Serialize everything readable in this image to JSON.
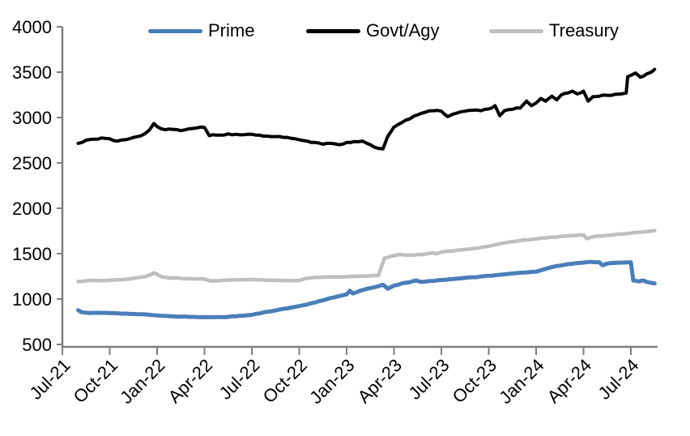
{
  "chart_data": {
    "type": "line",
    "title": "",
    "legend_position": "top",
    "grid": false,
    "x_axis": {
      "unit": "month",
      "origin_label": "Jul-21",
      "tick_labels": [
        "Jul-21",
        "Oct-21",
        "Jan-22",
        "Apr-22",
        "Jul-22",
        "Oct-22",
        "Jan-23",
        "Apr-23",
        "Jul-23",
        "Oct-23",
        "Jan-24",
        "Apr-24",
        "Jul-24"
      ],
      "tick_months": [
        0,
        3,
        6,
        9,
        12,
        15,
        18,
        21,
        24,
        27,
        30,
        33,
        36
      ]
    },
    "y_axis": {
      "ticks": [
        500,
        1000,
        1500,
        2000,
        2500,
        3000,
        3500,
        4000
      ],
      "range": [
        500,
        4000
      ]
    },
    "axis_color": "#7f7f7f",
    "series": [
      {
        "name": "Prime",
        "color": "#4a7eb9",
        "stroke_width": 5,
        "jitter": 3,
        "points": [
          [
            1.0,
            878
          ],
          [
            1.2,
            855
          ],
          [
            1.5,
            850
          ],
          [
            2.0,
            848
          ],
          [
            2.5,
            847
          ],
          [
            3.0,
            845
          ],
          [
            3.5,
            843
          ],
          [
            4.0,
            840
          ],
          [
            4.5,
            836
          ],
          [
            5.0,
            832
          ],
          [
            5.5,
            826
          ],
          [
            6.0,
            820
          ],
          [
            6.5,
            814
          ],
          [
            7.0,
            809
          ],
          [
            7.5,
            806
          ],
          [
            8.0,
            804
          ],
          [
            8.5,
            802
          ],
          [
            9.0,
            801
          ],
          [
            9.5,
            800
          ],
          [
            10.0,
            801
          ],
          [
            10.5,
            804
          ],
          [
            11.0,
            810
          ],
          [
            11.5,
            817
          ],
          [
            12.0,
            826
          ],
          [
            12.5,
            842
          ],
          [
            13.0,
            860
          ],
          [
            13.5,
            875
          ],
          [
            14.0,
            892
          ],
          [
            14.5,
            906
          ],
          [
            15.0,
            922
          ],
          [
            15.5,
            940
          ],
          [
            16.0,
            962
          ],
          [
            16.5,
            986
          ],
          [
            17.0,
            1012
          ],
          [
            17.5,
            1032
          ],
          [
            18.0,
            1052
          ],
          [
            18.2,
            1092
          ],
          [
            18.4,
            1062
          ],
          [
            19.0,
            1098
          ],
          [
            19.5,
            1120
          ],
          [
            20.0,
            1140
          ],
          [
            20.3,
            1158
          ],
          [
            20.6,
            1114
          ],
          [
            21.0,
            1148
          ],
          [
            21.5,
            1172
          ],
          [
            22.0,
            1185
          ],
          [
            22.4,
            1205
          ],
          [
            22.7,
            1188
          ],
          [
            23.0,
            1192
          ],
          [
            23.5,
            1200
          ],
          [
            24.0,
            1210
          ],
          [
            24.5,
            1218
          ],
          [
            25.0,
            1226
          ],
          [
            25.5,
            1233
          ],
          [
            26.0,
            1240
          ],
          [
            26.5,
            1248
          ],
          [
            27.0,
            1256
          ],
          [
            27.5,
            1264
          ],
          [
            28.0,
            1272
          ],
          [
            28.5,
            1281
          ],
          [
            29.0,
            1290
          ],
          [
            29.5,
            1295
          ],
          [
            30.0,
            1302
          ],
          [
            30.5,
            1328
          ],
          [
            31.0,
            1352
          ],
          [
            31.5,
            1368
          ],
          [
            32.0,
            1385
          ],
          [
            32.5,
            1395
          ],
          [
            33.0,
            1402
          ],
          [
            33.5,
            1410
          ],
          [
            34.0,
            1405
          ],
          [
            34.2,
            1372
          ],
          [
            34.5,
            1390
          ],
          [
            35.0,
            1398
          ],
          [
            35.5,
            1402
          ],
          [
            36.0,
            1405
          ],
          [
            36.15,
            1205
          ],
          [
            36.5,
            1195
          ],
          [
            36.8,
            1205
          ],
          [
            37.0,
            1188
          ],
          [
            37.3,
            1178
          ],
          [
            37.5,
            1172
          ]
        ]
      },
      {
        "name": "Govt/Agy",
        "color": "#000000",
        "stroke_width": 4,
        "jitter": 8,
        "points": [
          [
            1.0,
            2715
          ],
          [
            1.5,
            2750
          ],
          [
            2.0,
            2762
          ],
          [
            2.5,
            2775
          ],
          [
            3.0,
            2765
          ],
          [
            3.5,
            2740
          ],
          [
            4.0,
            2755
          ],
          [
            4.5,
            2780
          ],
          [
            5.0,
            2800
          ],
          [
            5.5,
            2860
          ],
          [
            5.8,
            2935
          ],
          [
            6.0,
            2900
          ],
          [
            6.5,
            2865
          ],
          [
            7.0,
            2870
          ],
          [
            7.5,
            2855
          ],
          [
            8.0,
            2875
          ],
          [
            8.5,
            2885
          ],
          [
            9.0,
            2890
          ],
          [
            9.3,
            2800
          ],
          [
            9.5,
            2810
          ],
          [
            10.0,
            2805
          ],
          [
            10.5,
            2820
          ],
          [
            11.0,
            2815
          ],
          [
            11.5,
            2810
          ],
          [
            12.0,
            2815
          ],
          [
            12.5,
            2805
          ],
          [
            13.0,
            2795
          ],
          [
            13.5,
            2790
          ],
          [
            14.0,
            2780
          ],
          [
            14.5,
            2770
          ],
          [
            15.0,
            2755
          ],
          [
            15.5,
            2740
          ],
          [
            16.0,
            2725
          ],
          [
            16.5,
            2705
          ],
          [
            17.0,
            2715
          ],
          [
            17.5,
            2700
          ],
          [
            18.0,
            2725
          ],
          [
            18.5,
            2735
          ],
          [
            19.0,
            2740
          ],
          [
            19.5,
            2700
          ],
          [
            20.0,
            2660
          ],
          [
            20.3,
            2655
          ],
          [
            20.6,
            2790
          ],
          [
            21.0,
            2895
          ],
          [
            21.5,
            2945
          ],
          [
            22.0,
            2985
          ],
          [
            22.5,
            3030
          ],
          [
            23.0,
            3060
          ],
          [
            23.5,
            3075
          ],
          [
            24.0,
            3070
          ],
          [
            24.4,
            3010
          ],
          [
            24.7,
            3035
          ],
          [
            25.0,
            3050
          ],
          [
            25.5,
            3070
          ],
          [
            26.0,
            3080
          ],
          [
            26.5,
            3075
          ],
          [
            27.0,
            3095
          ],
          [
            27.4,
            3130
          ],
          [
            27.7,
            3020
          ],
          [
            28.0,
            3075
          ],
          [
            28.5,
            3090
          ],
          [
            29.0,
            3105
          ],
          [
            29.4,
            3180
          ],
          [
            29.7,
            3130
          ],
          [
            30.0,
            3160
          ],
          [
            30.3,
            3210
          ],
          [
            30.6,
            3180
          ],
          [
            31.0,
            3235
          ],
          [
            31.3,
            3195
          ],
          [
            31.6,
            3250
          ],
          [
            32.0,
            3270
          ],
          [
            32.3,
            3290
          ],
          [
            32.6,
            3260
          ],
          [
            33.0,
            3290
          ],
          [
            33.3,
            3180
          ],
          [
            33.6,
            3230
          ],
          [
            34.0,
            3235
          ],
          [
            34.5,
            3245
          ],
          [
            35.0,
            3255
          ],
          [
            35.4,
            3260
          ],
          [
            35.7,
            3270
          ],
          [
            35.8,
            3450
          ],
          [
            36.0,
            3465
          ],
          [
            36.3,
            3490
          ],
          [
            36.6,
            3445
          ],
          [
            37.0,
            3480
          ],
          [
            37.3,
            3500
          ],
          [
            37.5,
            3530
          ]
        ]
      },
      {
        "name": "Treasury",
        "color": "#bfbfbf",
        "stroke_width": 4.5,
        "jitter": 4,
        "points": [
          [
            1.0,
            1193
          ],
          [
            1.5,
            1200
          ],
          [
            2.0,
            1205
          ],
          [
            2.5,
            1203
          ],
          [
            3.0,
            1207
          ],
          [
            3.5,
            1212
          ],
          [
            4.0,
            1218
          ],
          [
            4.5,
            1228
          ],
          [
            5.0,
            1242
          ],
          [
            5.5,
            1262
          ],
          [
            5.8,
            1288
          ],
          [
            6.0,
            1272
          ],
          [
            6.3,
            1245
          ],
          [
            7.0,
            1232
          ],
          [
            7.5,
            1228
          ],
          [
            8.0,
            1225
          ],
          [
            8.5,
            1222
          ],
          [
            9.0,
            1220
          ],
          [
            9.4,
            1200
          ],
          [
            10.0,
            1203
          ],
          [
            10.5,
            1207
          ],
          [
            11.0,
            1210
          ],
          [
            11.5,
            1213
          ],
          [
            12.0,
            1215
          ],
          [
            12.5,
            1212
          ],
          [
            13.0,
            1208
          ],
          [
            13.5,
            1206
          ],
          [
            14.0,
            1204
          ],
          [
            14.5,
            1203
          ],
          [
            15.0,
            1205
          ],
          [
            15.6,
            1232
          ],
          [
            16.0,
            1238
          ],
          [
            16.5,
            1240
          ],
          [
            17.0,
            1242
          ],
          [
            17.5,
            1244
          ],
          [
            18.0,
            1246
          ],
          [
            18.5,
            1250
          ],
          [
            19.0,
            1252
          ],
          [
            19.5,
            1255
          ],
          [
            20.0,
            1258
          ],
          [
            20.4,
            1452
          ],
          [
            21.0,
            1478
          ],
          [
            21.4,
            1492
          ],
          [
            22.0,
            1484
          ],
          [
            22.5,
            1490
          ],
          [
            23.0,
            1496
          ],
          [
            23.4,
            1508
          ],
          [
            23.7,
            1498
          ],
          [
            24.0,
            1518
          ],
          [
            24.5,
            1528
          ],
          [
            25.0,
            1538
          ],
          [
            25.5,
            1546
          ],
          [
            26.0,
            1556
          ],
          [
            26.5,
            1568
          ],
          [
            27.0,
            1582
          ],
          [
            27.5,
            1600
          ],
          [
            28.0,
            1618
          ],
          [
            28.5,
            1632
          ],
          [
            29.0,
            1645
          ],
          [
            29.5,
            1652
          ],
          [
            30.0,
            1662
          ],
          [
            30.5,
            1672
          ],
          [
            31.0,
            1682
          ],
          [
            31.5,
            1690
          ],
          [
            32.0,
            1695
          ],
          [
            32.5,
            1700
          ],
          [
            33.0,
            1705
          ],
          [
            33.2,
            1665
          ],
          [
            33.6,
            1685
          ],
          [
            34.0,
            1695
          ],
          [
            34.5,
            1702
          ],
          [
            35.0,
            1710
          ],
          [
            35.5,
            1718
          ],
          [
            36.0,
            1726
          ],
          [
            36.5,
            1736
          ],
          [
            37.0,
            1745
          ],
          [
            37.5,
            1756
          ]
        ]
      }
    ]
  },
  "legend": {
    "items": [
      {
        "label": "Prime"
      },
      {
        "label": "Govt/Agy"
      },
      {
        "label": "Treasury"
      }
    ]
  }
}
